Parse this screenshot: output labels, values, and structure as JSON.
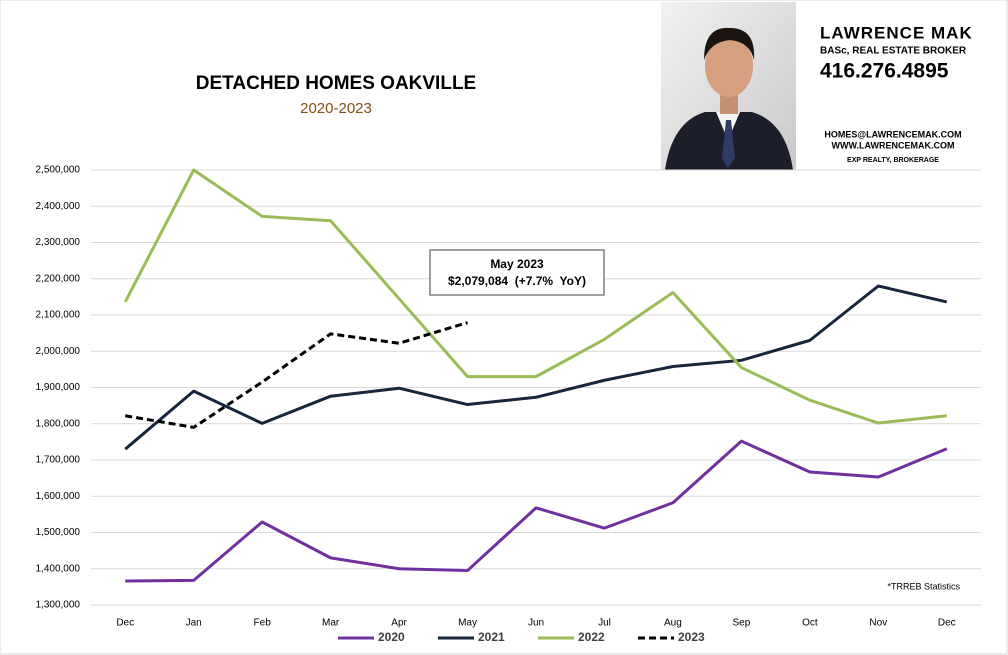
{
  "chart_data": {
    "type": "line",
    "title": "DETACHED HOMES OAKVILLE",
    "subtitle": "2020-2023",
    "categories": [
      "Dec",
      "Jan",
      "Feb",
      "Mar",
      "Apr",
      "May",
      "Jun",
      "Jul",
      "Aug",
      "Sep",
      "Oct",
      "Nov",
      "Dec"
    ],
    "series": [
      {
        "name": "2020",
        "color": "#7030a0",
        "dash": false,
        "values": [
          1366000,
          1368000,
          1529000,
          1430000,
          1400000,
          1395000,
          1568000,
          1512000,
          1582000,
          1752000,
          1667000,
          1653000,
          1731000
        ]
      },
      {
        "name": "2021",
        "color": "#17263a",
        "dash": false,
        "values": [
          1730000,
          1890000,
          1801000,
          1876000,
          1898000,
          1853000,
          1873000,
          1920000,
          1958000,
          1975000,
          2030000,
          2180000,
          2136000
        ]
      },
      {
        "name": "2022",
        "color": "#9bbb59",
        "dash": false,
        "values": [
          2136000,
          2500000,
          2372000,
          2360000,
          2145000,
          1930000,
          1930000,
          2033000,
          2162000,
          1955000,
          1865000,
          1802000,
          1822000
        ]
      },
      {
        "name": "2023",
        "color": "#000000",
        "dash": true,
        "values": [
          1822000,
          1790000,
          1915000,
          2048000,
          2022000,
          2079084,
          null,
          null,
          null,
          null,
          null,
          null,
          null
        ]
      }
    ],
    "ylim": [
      1300000,
      2500000
    ],
    "yticks": [
      {
        "value": 1300000,
        "label": "1,300,000"
      },
      {
        "value": 1400000,
        "label": "1,400,000"
      },
      {
        "value": 1500000,
        "label": "1,500,000"
      },
      {
        "value": 1600000,
        "label": "1,600,000"
      },
      {
        "value": 1700000,
        "label": "1,700,000"
      },
      {
        "value": 1800000,
        "label": "1,800,000"
      },
      {
        "value": 1900000,
        "label": "1,900,000"
      },
      {
        "value": 2000000,
        "label": "2,000,000"
      },
      {
        "value": 2100000,
        "label": "2,100,000"
      },
      {
        "value": 2200000,
        "label": "2,200,000"
      },
      {
        "value": 2300000,
        "label": "2,300,000"
      },
      {
        "value": 2400000,
        "label": "2,400,000"
      },
      {
        "value": 2500000,
        "label": "2,500,000"
      }
    ],
    "grid": true,
    "legend": "bottom",
    "annotation": {
      "title": "May 2023",
      "text": "$2,079,084  (+7.7%  YoY)"
    },
    "footnote": "*TRREB Statistics",
    "branding": {
      "name": "LAWRENCE MAK",
      "role": "BASc, REAL ESTATE BROKER",
      "phone": "416.276.4895",
      "email": "HOMES@LAWRENCEMAK.COM",
      "website": "WWW.LAWRENCEMAK.COM",
      "brokerage": "EXP REALTY, BROKERAGE"
    }
  }
}
